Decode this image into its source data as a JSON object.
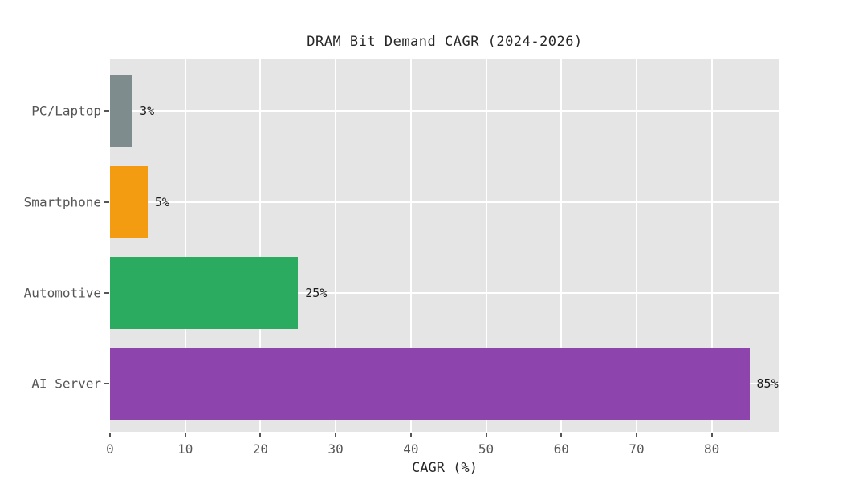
{
  "chart_data": {
    "type": "bar",
    "orientation": "horizontal",
    "title": "DRAM Bit Demand CAGR (2024-2026)",
    "xlabel": "CAGR (%)",
    "ylabel": "",
    "categories": [
      "PC/Laptop",
      "Smartphone",
      "Automotive",
      "AI Server"
    ],
    "values": [
      3,
      5,
      25,
      85
    ],
    "value_labels": [
      "3%",
      "5%",
      "25%",
      "85%"
    ],
    "bar_colors": [
      "#7f8c8d",
      "#f39c12",
      "#2bab60",
      "#8e44ad"
    ],
    "x_ticks": [
      0,
      10,
      20,
      30,
      40,
      50,
      60,
      70,
      80
    ],
    "xlim": [
      0,
      89
    ],
    "grid": "on",
    "legend": "none",
    "panel_bg_color": "#e5e5e5",
    "grid_color": "#ffffff",
    "tick_label_color": "#555555",
    "title_color": "#262626",
    "value_label_color": "#1a1a1a"
  }
}
